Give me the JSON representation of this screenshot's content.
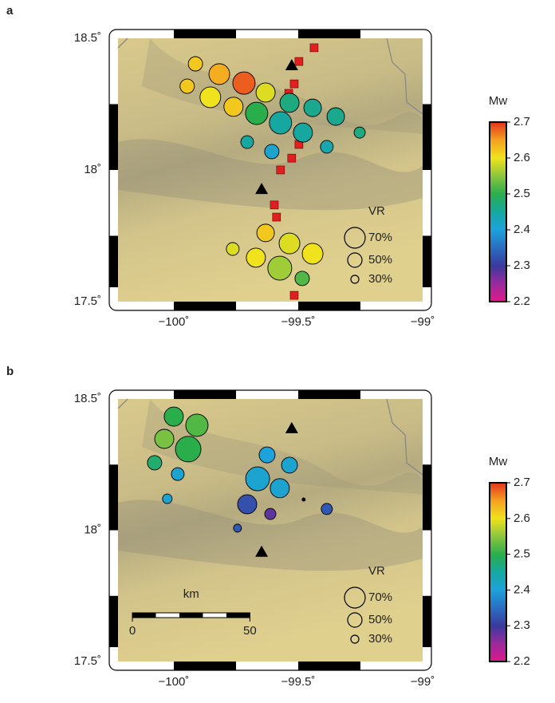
{
  "chart_data": [
    {
      "type": "scatter",
      "panel_label": "a",
      "xlim": [
        -100.224,
        -99.0
      ],
      "ylim": [
        17.5,
        18.5
      ],
      "xticks": [
        {
          "value": -100,
          "label": "−100˚"
        },
        {
          "value": -99.5,
          "label": "−99.5˚"
        },
        {
          "value": -99,
          "label": "−99˚"
        }
      ],
      "yticks": [
        {
          "value": 17.5,
          "label": "17.5˚"
        },
        {
          "value": 18,
          "label": "18˚"
        },
        {
          "value": 18.5,
          "label": "18.5˚"
        }
      ],
      "x": [
        -99.913,
        -99.946,
        -99.817,
        -99.718,
        -99.853,
        -99.76,
        -99.631,
        -99.535,
        -99.667,
        -99.571,
        -99.442,
        -99.349,
        -99.481,
        -99.253,
        -99.705,
        -99.385,
        -99.606,
        -99.631,
        -99.763,
        -99.535,
        -99.67,
        -99.442,
        -99.574,
        -99.484
      ],
      "y": [
        18.403,
        18.318,
        18.364,
        18.33,
        18.276,
        18.24,
        18.294,
        18.255,
        18.215,
        18.179,
        18.236,
        18.203,
        18.142,
        18.142,
        18.106,
        18.088,
        18.07,
        17.761,
        17.7,
        17.721,
        17.667,
        17.682,
        17.627,
        17.588
      ],
      "sizes": [
        50,
        50,
        70,
        75,
        70,
        65,
        65,
        65,
        75,
        75,
        60,
        60,
        65,
        40,
        45,
        45,
        50,
        60,
        45,
        70,
        65,
        70,
        80,
        50
      ],
      "mw": [
        2.62,
        2.62,
        2.64,
        2.68,
        2.6,
        2.62,
        2.59,
        2.47,
        2.5,
        2.45,
        2.46,
        2.46,
        2.45,
        2.47,
        2.45,
        2.44,
        2.41,
        2.62,
        2.59,
        2.59,
        2.6,
        2.6,
        2.56,
        2.52
      ],
      "triangles": {
        "x": [
          -99.526,
          -99.647
        ],
        "y": [
          18.397,
          17.927
        ]
      },
      "squares": {
        "x": [
          -99.436,
          -99.497,
          -99.516,
          -99.538,
          -99.497,
          -99.526,
          -99.571,
          -99.596,
          -99.587,
          -99.516
        ],
        "y": [
          18.464,
          18.412,
          18.327,
          18.291,
          18.097,
          18.045,
          18.0,
          17.867,
          17.821,
          17.524
        ]
      },
      "size_legend": {
        "title": "VR",
        "values": [
          {
            "value": 70,
            "label": "70%"
          },
          {
            "value": 50,
            "label": "50%"
          },
          {
            "value": 30,
            "label": "30%"
          }
        ]
      },
      "colorbar": {
        "label": "Mw",
        "lim": [
          2.2,
          2.7
        ],
        "ticks": [
          2.2,
          2.3,
          2.4,
          2.5,
          2.6,
          2.7
        ],
        "colormap": [
          "#e0188c",
          "#9a2a9c",
          "#3a3a9e",
          "#2a6ec2",
          "#1ea2dc",
          "#16a8a0",
          "#2aae4c",
          "#8cc63e",
          "#f0e21c",
          "#f5a020",
          "#e4321c"
        ]
      }
    },
    {
      "type": "scatter",
      "panel_label": "b",
      "xlim": [
        -100.224,
        -99.0
      ],
      "ylim": [
        17.5,
        18.5
      ],
      "xticks": [
        {
          "value": -100,
          "label": "−100˚"
        },
        {
          "value": -99.5,
          "label": "−99.5˚"
        },
        {
          "value": -99,
          "label": "−99˚"
        }
      ],
      "yticks": [
        {
          "value": 17.5,
          "label": "17.5˚"
        },
        {
          "value": 18,
          "label": "18˚"
        },
        {
          "value": 18.5,
          "label": "18.5˚"
        }
      ],
      "x": [
        -100.0,
        -99.907,
        -100.038,
        -99.942,
        -100.077,
        -99.984,
        -100.026,
        -99.625,
        -99.535,
        -99.663,
        -99.574,
        -99.705,
        -99.612,
        -99.478,
        -99.385,
        -99.744
      ],
      "y": [
        18.433,
        18.4,
        18.348,
        18.309,
        18.257,
        18.214,
        18.12,
        18.287,
        18.248,
        18.196,
        18.16,
        18.099,
        18.062,
        18.117,
        18.081,
        18.008
      ],
      "sizes": [
        65,
        75,
        65,
        85,
        50,
        45,
        35,
        55,
        55,
        80,
        65,
        65,
        40,
        15,
        40,
        30
      ],
      "mw": [
        2.5,
        2.52,
        2.54,
        2.5,
        2.48,
        2.41,
        2.41,
        2.4,
        2.41,
        2.41,
        2.41,
        2.32,
        2.28,
        2.3,
        2.33,
        2.33
      ],
      "triangles": {
        "x": [
          -99.526,
          -99.647
        ],
        "y": [
          18.388,
          17.917
        ]
      },
      "scale_bar": {
        "label": "km",
        "ticks": [
          0,
          50
        ]
      },
      "size_legend": {
        "title": "VR",
        "values": [
          {
            "value": 70,
            "label": "70%"
          },
          {
            "value": 50,
            "label": "50%"
          },
          {
            "value": 30,
            "label": "30%"
          }
        ]
      },
      "colorbar": {
        "label": "Mw",
        "lim": [
          2.2,
          2.7
        ],
        "ticks": [
          2.2,
          2.3,
          2.4,
          2.5,
          2.6,
          2.7
        ],
        "colormap": [
          "#e0188c",
          "#9a2a9c",
          "#3a3a9e",
          "#2a6ec2",
          "#1ea2dc",
          "#16a8a0",
          "#2aae4c",
          "#8cc63e",
          "#f0e21c",
          "#f5a020",
          "#e4321c"
        ]
      }
    }
  ]
}
